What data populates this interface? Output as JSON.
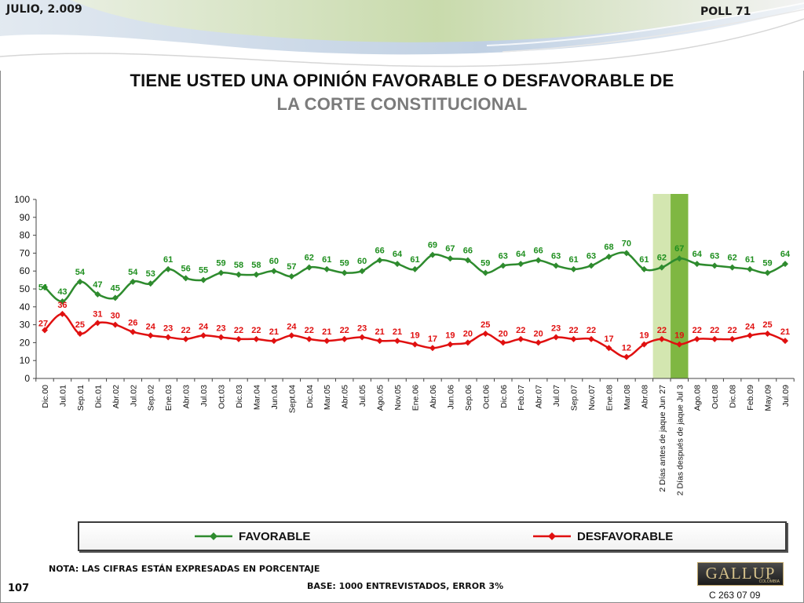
{
  "header": {
    "date": "JULIO, 2.009",
    "poll": "POLL 71"
  },
  "title": {
    "line1": "TIENE USTED UNA OPINIÓN FAVORABLE O DESFAVORABLE DE",
    "line2": "LA CORTE CONSTITUCIONAL"
  },
  "footer": {
    "note": "NOTA: LAS CIFRAS ESTÁN EXPRESADAS EN PORCENTAJE",
    "base": "BASE: 1000 ENTREVISTADOS, ERROR 3%",
    "page": "107",
    "code": "C 263 07 09"
  },
  "logo": {
    "name": "GALLUP",
    "sub": "COLOMBIA"
  },
  "colors": {
    "favorable": "#2e8b2e",
    "favorable_label": "#1f8f1f",
    "desfavorable": "#e01010",
    "desfavorable_label": "#e01010",
    "highlight_before": "#d3e6b0",
    "highlight_after": "#7fb742"
  },
  "chart_data": {
    "type": "line",
    "categories": [
      "Dic.00",
      "Jul.01",
      "Sep.01",
      "Dic.01",
      "Abr.02",
      "Jul.02",
      "Sep.02",
      "Ene.03",
      "Abr.03",
      "Jul.03",
      "Oct.03",
      "Dic.03",
      "Mar.04",
      "Jun.04",
      "Sept.04",
      "Dic.04",
      "Mar.05",
      "Abr.05",
      "Jul.05",
      "Ago.05",
      "Nov.05",
      "Ene.06",
      "Abr.06",
      "Jun.06",
      "Sep.06",
      "Oct.06",
      "Dic.06",
      "Feb.07",
      "Abr.07",
      "Jul.07",
      "Sep.07",
      "Nov.07",
      "Ene.08",
      "Mar.08",
      "Abr.08",
      "2 Días antes de jaque Jun 27",
      "2 Días después de jaque Jul 3",
      "Ago.08",
      "Oct.08",
      "Dic.08",
      "Feb.09",
      "May.09",
      "Jul.09"
    ],
    "series": [
      {
        "name": "FAVORABLE",
        "values": [
          51,
          43,
          54,
          47,
          45,
          54,
          53,
          61,
          56,
          55,
          59,
          58,
          58,
          60,
          57,
          62,
          61,
          59,
          60,
          66,
          64,
          61,
          69,
          67,
          66,
          59,
          63,
          64,
          66,
          63,
          61,
          63,
          68,
          70,
          61,
          62,
          67,
          64,
          63,
          62,
          61,
          59,
          64
        ]
      },
      {
        "name": "DESFAVORABLE",
        "values": [
          27,
          36,
          25,
          31,
          30,
          26,
          24,
          23,
          22,
          24,
          23,
          22,
          22,
          21,
          24,
          22,
          21,
          22,
          23,
          21,
          21,
          19,
          17,
          19,
          20,
          25,
          20,
          22,
          20,
          23,
          22,
          22,
          17,
          12,
          19,
          22,
          19,
          22,
          22,
          22,
          24,
          25,
          21
        ]
      }
    ],
    "highlight": [
      "2 Días antes de jaque Jun 27",
      "2 Días después de jaque Jul 3"
    ],
    "ylim": [
      0,
      100
    ],
    "yticks": [
      0,
      10,
      20,
      30,
      40,
      50,
      60,
      70,
      80,
      90,
      100
    ],
    "legend": "bottom"
  }
}
